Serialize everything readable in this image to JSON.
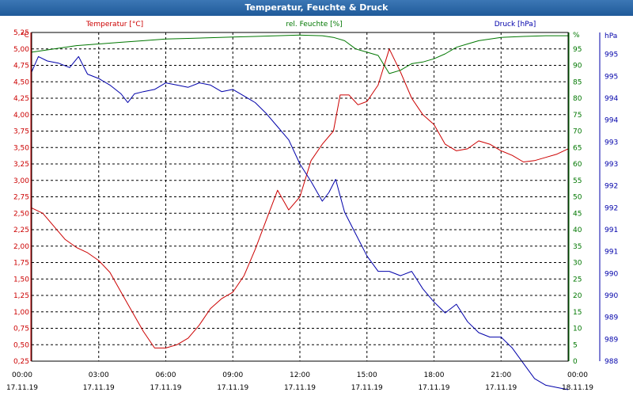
{
  "window": {
    "title": "Temperatur, Feuchte & Druck"
  },
  "colors": {
    "temperature": "#cc0000",
    "humidity": "#007700",
    "pressure": "#0000aa",
    "grid": "#000000",
    "title_bar": "#2a64a3"
  },
  "chart_data": {
    "type": "line",
    "title": "Temperatur, Feuchte & Druck",
    "grid": true,
    "x_ticks": [
      {
        "time": "00:00",
        "date": "17.11.19"
      },
      {
        "time": "03:00",
        "date": "17.11.19"
      },
      {
        "time": "06:00",
        "date": "17.11.19"
      },
      {
        "time": "09:00",
        "date": "17.11.19"
      },
      {
        "time": "12:00",
        "date": "17.11.19"
      },
      {
        "time": "15:00",
        "date": "17.11.19"
      },
      {
        "time": "18:00",
        "date": "17.11.19"
      },
      {
        "time": "21:00",
        "date": "17.11.19"
      },
      {
        "time": "00:00",
        "date": "18.11.19"
      }
    ],
    "axes": {
      "temperature": {
        "label": "Temperatur [°C]",
        "unit": "°C",
        "range": [
          0.25,
          5.25
        ],
        "ticks": [
          "0,25",
          "0,50",
          "0,75",
          "1,00",
          "1,25",
          "1,50",
          "1,75",
          "2,00",
          "2,25",
          "2,50",
          "2,75",
          "3,00",
          "3,25",
          "3,50",
          "3,75",
          "4,00",
          "4,25",
          "4,50",
          "4,75",
          "5,00",
          "5,25"
        ]
      },
      "humidity": {
        "label": "rel. Feuchte [%]",
        "unit": "%",
        "range": [
          0,
          100
        ],
        "ticks": [
          "0",
          "5",
          "10",
          "15",
          "20",
          "25",
          "30",
          "35",
          "40",
          "45",
          "50",
          "55",
          "60",
          "65",
          "70",
          "75",
          "80",
          "85",
          "90",
          "95",
          "%"
        ]
      },
      "pressure": {
        "label": "Druck [hPa]",
        "unit": "hPa",
        "range": [
          988,
          995.5
        ],
        "ticks": [
          "988",
          "989",
          "989",
          "990",
          "990",
          "991",
          "991",
          "992",
          "992",
          "993",
          "993",
          "994",
          "994",
          "995",
          "995",
          "hPa"
        ]
      }
    },
    "series": [
      {
        "name": "Temperatur [°C]",
        "axis": "temperature",
        "x": [
          0,
          0.5,
          1,
          1.5,
          2,
          2.5,
          3,
          3.5,
          4,
          4.5,
          5,
          5.5,
          6,
          6.5,
          7,
          7.5,
          8,
          8.5,
          9,
          9.5,
          10,
          10.5,
          11,
          11.5,
          12,
          12.5,
          13,
          13.5,
          13.8,
          14.2,
          14.6,
          15,
          15.5,
          16,
          16.5,
          17,
          17.5,
          18,
          18.5,
          19,
          19.5,
          20,
          20.5,
          21,
          21.5,
          22,
          22.5,
          23,
          23.5,
          24
        ],
        "values": [
          2.58,
          2.5,
          2.3,
          2.1,
          1.98,
          1.9,
          1.78,
          1.6,
          1.3,
          1.0,
          0.7,
          0.45,
          0.45,
          0.5,
          0.6,
          0.8,
          1.05,
          1.2,
          1.3,
          1.55,
          1.95,
          2.4,
          2.85,
          2.55,
          2.75,
          3.3,
          3.55,
          3.75,
          4.3,
          4.3,
          4.15,
          4.2,
          4.45,
          5.0,
          4.65,
          4.25,
          4.0,
          3.85,
          3.55,
          3.45,
          3.48,
          3.6,
          3.55,
          3.45,
          3.38,
          3.28,
          3.3,
          3.35,
          3.4,
          3.48
        ]
      },
      {
        "name": "rel. Feuchte [%]",
        "axis": "humidity",
        "x": [
          0,
          1,
          2,
          3,
          4,
          5,
          6,
          7,
          8,
          9,
          10,
          11,
          12,
          13,
          13.5,
          14,
          14.5,
          15,
          15.5,
          16,
          16.5,
          17,
          17.5,
          18,
          18.5,
          19,
          19.5,
          20,
          21,
          22,
          23,
          24
        ],
        "values": [
          94,
          95,
          96,
          96.5,
          97,
          97.5,
          98,
          98.2,
          98.4,
          98.6,
          98.8,
          99,
          99.2,
          99,
          98.5,
          97.5,
          95,
          94,
          93,
          87.5,
          88.5,
          90.5,
          91,
          92,
          93.5,
          95.5,
          96.5,
          97.5,
          98.5,
          98.8,
          99,
          99
        ]
      },
      {
        "name": "Druck [hPa]",
        "axis": "pressure",
        "x": [
          0,
          0.3,
          0.7,
          1.2,
          1.7,
          2.1,
          2.5,
          3,
          3.5,
          4,
          4.3,
          4.6,
          5,
          5.5,
          6,
          6.5,
          7,
          7.5,
          8,
          8.5,
          9,
          9.5,
          10,
          10.5,
          11,
          11.5,
          12,
          12.5,
          13,
          13.3,
          13.6,
          14,
          14.5,
          15,
          15.5,
          16,
          16.5,
          17,
          17.5,
          18,
          18.5,
          19,
          19.5,
          20,
          20.5,
          21,
          21.5,
          22,
          22.5,
          23,
          23.5,
          24
        ],
        "values": [
          994.6,
          994.95,
          994.85,
          994.8,
          994.7,
          994.95,
          994.55,
          994.45,
          994.3,
          994.1,
          993.9,
          994.1,
          994.15,
          994.2,
          994.35,
          994.3,
          994.25,
          994.35,
          994.3,
          994.15,
          994.2,
          994.05,
          993.9,
          993.65,
          993.35,
          993.05,
          992.5,
          992.1,
          991.65,
          991.85,
          992.15,
          991.4,
          990.9,
          990.4,
          990.05,
          990.05,
          989.95,
          990.05,
          989.65,
          989.35,
          989.1,
          989.3,
          988.9,
          988.65,
          988.55,
          988.55,
          988.3,
          987.95,
          987.6,
          987.45,
          987.4,
          987.35
        ]
      }
    ]
  }
}
